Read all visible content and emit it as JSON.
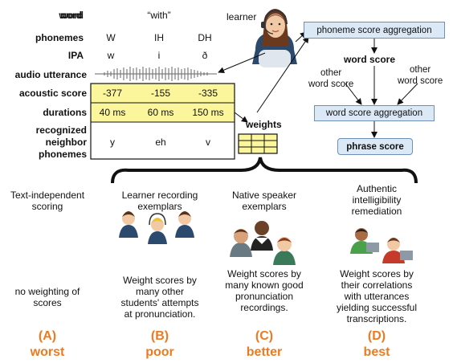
{
  "header": {
    "learner_label": "learner"
  },
  "rows": {
    "word": {
      "label": "word",
      "values": [
        "“with”"
      ]
    },
    "phonemes": {
      "label": "phonemes",
      "values": [
        "W",
        "IH",
        "DH"
      ]
    },
    "ipa": {
      "label": "IPA",
      "values": [
        "w",
        "i",
        "ð"
      ]
    },
    "audio": {
      "label": "audio utterance"
    },
    "acoustic": {
      "label": "acoustic score",
      "values": [
        "-377",
        "-155",
        "-335"
      ]
    },
    "durations": {
      "label": "durations",
      "values": [
        "40 ms",
        "60 ms",
        "150 ms"
      ]
    },
    "neighbors": {
      "label_lines": [
        "recognized",
        "neighbor",
        "phonemes"
      ],
      "values": [
        "y",
        "eh",
        "v"
      ]
    }
  },
  "weights_label": "weights",
  "flow": {
    "phoneme_agg": "phoneme score aggregation",
    "word_score": "word score",
    "other_word_score_left": [
      "other",
      "word score"
    ],
    "other_word_score_right": [
      "other",
      "word score"
    ],
    "word_agg": "word score aggregation",
    "phrase_score": "phrase score"
  },
  "options": [
    {
      "heading": [
        "Text-independent",
        "scoring"
      ],
      "description": [
        "no weighting of",
        "scores"
      ],
      "letter": "(A)",
      "grade": "worst"
    },
    {
      "heading": [
        "Learner recording",
        "exemplars"
      ],
      "description": [
        "Weight scores by",
        "many other",
        "students' attempts",
        "at pronunciation."
      ],
      "letter": "(B)",
      "grade": "poor"
    },
    {
      "heading": [
        "Native speaker",
        "exemplars"
      ],
      "description": [
        "Weight scores by",
        "many known good",
        "pronunciation",
        "recordings."
      ],
      "letter": "(C)",
      "grade": "better"
    },
    {
      "heading": [
        "Authentic",
        "intelligibility",
        "remediation"
      ],
      "description": [
        "Weight scores by",
        "their correlations",
        "with utterances",
        "yielding successful",
        "transcriptions."
      ],
      "letter": "(D)",
      "grade": "best"
    }
  ],
  "colors": {
    "accent_orange": "#ee7a1f",
    "score_highlight": "#fbf59b",
    "box_blue": "#dbe8f6"
  }
}
